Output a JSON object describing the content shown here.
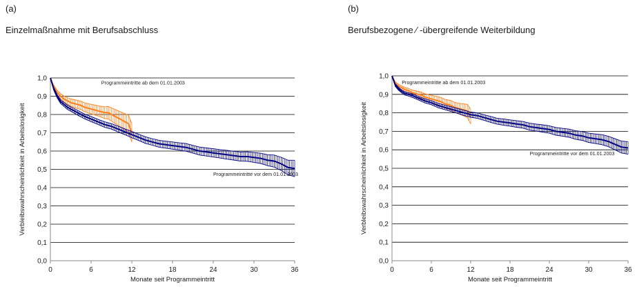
{
  "colors": {
    "after": "#ff7f1a",
    "before": "#000080",
    "grid": "#000000",
    "axis": "#888888"
  },
  "chart_data": [
    {
      "type": "line",
      "panel_label": "(a)",
      "title": "Einzelmaßnahme mit Berufsabschluss",
      "xlabel": "Monate seit Programmeintritt",
      "ylabel": "Verbleibswahrscheinlichkeit in Arbeitslosigkeit",
      "xlim": [
        0,
        36
      ],
      "ylim": [
        0,
        1
      ],
      "x_ticks": [
        "0",
        "6",
        "12",
        "18",
        "24",
        "30",
        "36"
      ],
      "y_ticks": [
        "0,0",
        "0,1",
        "0,2",
        "0,3",
        "0,4",
        "0,5",
        "0,6",
        "0,7",
        "0,8",
        "0,9",
        "1,0"
      ],
      "grid": true,
      "annotations": [
        {
          "text": "Programmeintritte ab dem 01.01.2003",
          "x": 7.5,
          "y": 0.965
        },
        {
          "text": "Programmeintritte vor dem 01.01.2003",
          "x": 24,
          "y": 0.465
        }
      ],
      "series": [
        {
          "color_key": "after",
          "x": [
            0,
            0.5,
            1,
            1.5,
            2,
            2.5,
            3,
            3.5,
            4,
            4.5,
            5,
            5.5,
            6,
            6.5,
            7,
            7.5,
            8,
            8.5,
            9,
            9.5,
            10,
            10.5,
            11,
            11.5,
            12
          ],
          "y": [
            1.0,
            0.95,
            0.92,
            0.9,
            0.885,
            0.875,
            0.865,
            0.86,
            0.855,
            0.85,
            0.84,
            0.835,
            0.83,
            0.825,
            0.82,
            0.815,
            0.81,
            0.81,
            0.8,
            0.79,
            0.78,
            0.77,
            0.76,
            0.75,
            0.7
          ],
          "ci_halfwidth": [
            0.0,
            0.01,
            0.012,
            0.014,
            0.016,
            0.018,
            0.02,
            0.021,
            0.022,
            0.023,
            0.024,
            0.025,
            0.026,
            0.027,
            0.028,
            0.03,
            0.032,
            0.034,
            0.036,
            0.038,
            0.04,
            0.042,
            0.044,
            0.046,
            0.05
          ]
        },
        {
          "color_key": "before",
          "x": [
            0,
            0.5,
            1,
            1.5,
            2,
            2.5,
            3,
            4,
            5,
            6,
            7,
            8,
            9,
            10,
            11,
            12,
            13,
            14,
            15,
            16,
            17,
            18,
            19,
            20,
            21,
            22,
            23,
            24,
            25,
            26,
            27,
            28,
            29,
            30,
            31,
            32,
            33,
            34,
            35,
            36
          ],
          "y": [
            1.0,
            0.94,
            0.9,
            0.87,
            0.855,
            0.84,
            0.83,
            0.81,
            0.79,
            0.775,
            0.76,
            0.745,
            0.735,
            0.72,
            0.705,
            0.69,
            0.675,
            0.66,
            0.65,
            0.64,
            0.635,
            0.63,
            0.625,
            0.62,
            0.61,
            0.6,
            0.595,
            0.59,
            0.585,
            0.58,
            0.575,
            0.57,
            0.57,
            0.565,
            0.56,
            0.55,
            0.545,
            0.53,
            0.51,
            0.505
          ],
          "ci_halfwidth": [
            0.0,
            0.008,
            0.009,
            0.01,
            0.011,
            0.012,
            0.012,
            0.013,
            0.013,
            0.014,
            0.014,
            0.015,
            0.015,
            0.016,
            0.016,
            0.017,
            0.017,
            0.018,
            0.018,
            0.019,
            0.019,
            0.02,
            0.02,
            0.021,
            0.021,
            0.022,
            0.022,
            0.023,
            0.023,
            0.024,
            0.024,
            0.025,
            0.026,
            0.027,
            0.028,
            0.03,
            0.033,
            0.036,
            0.04,
            0.045
          ]
        }
      ]
    },
    {
      "type": "line",
      "panel_label": "(b)",
      "title": "Berufsbezogene ⁄ -übergreifende Weiterbildung",
      "xlabel": "Monate seit Programmeintritt",
      "ylabel": "Verbleibswahrscheinlichkeit in Arbeitslosigkeit",
      "xlim": [
        0,
        36
      ],
      "ylim": [
        0,
        1
      ],
      "x_ticks": [
        "0",
        "6",
        "12",
        "18",
        "24",
        "30",
        "36"
      ],
      "y_ticks": [
        "0,0",
        "0,1",
        "0,2",
        "0,3",
        "0,4",
        "0,5",
        "0,6",
        "0,7",
        "0,8",
        "0,9",
        "1,0"
      ],
      "grid": true,
      "annotations": [
        {
          "text": "Programmeintritte ab dem 01.01.2003",
          "x": 1.5,
          "y": 0.955
        },
        {
          "text": "Programmeintritte vor dem 01.01.2003",
          "x": 21,
          "y": 0.57
        }
      ],
      "series": [
        {
          "color_key": "after",
          "x": [
            0,
            0.5,
            1,
            1.5,
            2,
            2.5,
            3,
            3.5,
            4,
            4.5,
            5,
            5.5,
            6,
            6.5,
            7,
            7.5,
            8,
            8.5,
            9,
            9.5,
            10,
            10.5,
            11,
            11.5,
            12
          ],
          "y": [
            1.0,
            0.96,
            0.945,
            0.935,
            0.925,
            0.92,
            0.91,
            0.905,
            0.9,
            0.895,
            0.885,
            0.88,
            0.875,
            0.87,
            0.865,
            0.86,
            0.85,
            0.845,
            0.84,
            0.83,
            0.825,
            0.82,
            0.815,
            0.81,
            0.78
          ],
          "ci_halfwidth": [
            0.0,
            0.008,
            0.01,
            0.011,
            0.012,
            0.013,
            0.014,
            0.015,
            0.016,
            0.017,
            0.018,
            0.019,
            0.02,
            0.021,
            0.022,
            0.023,
            0.024,
            0.025,
            0.026,
            0.027,
            0.028,
            0.03,
            0.033,
            0.036,
            0.04
          ]
        },
        {
          "color_key": "before",
          "x": [
            0,
            0.5,
            1,
            1.5,
            2,
            2.5,
            3,
            4,
            5,
            6,
            7,
            8,
            9,
            10,
            11,
            12,
            13,
            14,
            15,
            16,
            17,
            18,
            19,
            20,
            21,
            22,
            23,
            24,
            25,
            26,
            27,
            28,
            29,
            30,
            31,
            32,
            33,
            34,
            35,
            36
          ],
          "y": [
            1.0,
            0.95,
            0.93,
            0.915,
            0.905,
            0.9,
            0.895,
            0.88,
            0.865,
            0.855,
            0.84,
            0.83,
            0.82,
            0.81,
            0.8,
            0.79,
            0.785,
            0.775,
            0.765,
            0.755,
            0.75,
            0.745,
            0.74,
            0.735,
            0.725,
            0.72,
            0.715,
            0.71,
            0.7,
            0.695,
            0.69,
            0.68,
            0.675,
            0.665,
            0.66,
            0.655,
            0.645,
            0.63,
            0.615,
            0.61
          ],
          "ci_halfwidth": [
            0.0,
            0.007,
            0.008,
            0.008,
            0.009,
            0.009,
            0.01,
            0.01,
            0.011,
            0.011,
            0.012,
            0.012,
            0.013,
            0.013,
            0.014,
            0.014,
            0.015,
            0.015,
            0.016,
            0.016,
            0.017,
            0.017,
            0.018,
            0.018,
            0.019,
            0.019,
            0.02,
            0.02,
            0.021,
            0.021,
            0.022,
            0.023,
            0.024,
            0.025,
            0.026,
            0.027,
            0.028,
            0.03,
            0.032,
            0.034
          ]
        }
      ]
    }
  ]
}
